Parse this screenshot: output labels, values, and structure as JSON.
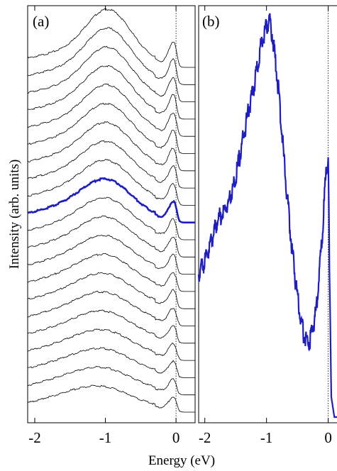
{
  "figure": {
    "xlabel": "Energy (eV)",
    "ylabel": "Intensity (arb. units)"
  },
  "chart_data": [
    {
      "type": "line",
      "panel_label": "(a)",
      "xlim": [
        -2.1,
        0.27
      ],
      "xticks": [
        -2,
        -1,
        0
      ],
      "xtick_labels": [
        "-2",
        "-1",
        "0"
      ],
      "reference_line": {
        "x": 0,
        "style": "dotted"
      },
      "stacked": true,
      "curve_count": 21,
      "highlighted_curve_index": 9,
      "colors": {
        "normal": "#000000",
        "highlight": "#1f1fbf"
      },
      "y_ticks_shown": false
    },
    {
      "type": "line",
      "panel_label": "(b)",
      "xlim": [
        -2.1,
        0.2
      ],
      "xticks": [
        -2,
        -1,
        0
      ],
      "xtick_labels": [
        "-2",
        "-1",
        "0"
      ],
      "reference_line": {
        "x": 0,
        "style": "dotted"
      },
      "color": "#1f1fbf",
      "y_ticks_shown": false,
      "series": [
        {
          "x": [
            -2.1,
            -2.0,
            -1.8,
            -1.6,
            -1.5,
            -1.4,
            -1.3,
            -1.2,
            -1.1,
            -1.0,
            -0.95,
            -0.9,
            -0.8,
            -0.7,
            -0.6,
            -0.5,
            -0.4,
            -0.3,
            -0.2,
            -0.1,
            -0.05,
            0.0,
            0.02,
            0.05,
            0.1,
            0.2
          ],
          "y": [
            0.37,
            0.4,
            0.5,
            0.55,
            0.61,
            0.69,
            0.77,
            0.84,
            0.93,
            0.99,
            1.0,
            0.96,
            0.82,
            0.62,
            0.45,
            0.31,
            0.22,
            0.2,
            0.27,
            0.45,
            0.59,
            0.67,
            0.38,
            0.05,
            0.0,
            0.0
          ]
        }
      ]
    }
  ]
}
